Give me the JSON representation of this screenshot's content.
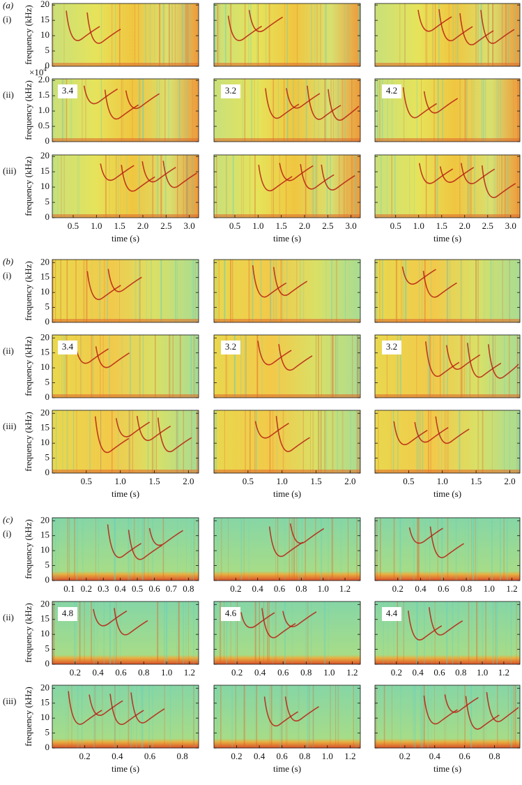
{
  "figure": {
    "sections": [
      {
        "label": "(a)",
        "rows": [
          {
            "label": "(i)",
            "ylabel": "frequency (kHz)",
            "ylim": [
              0,
              20.5
            ],
            "yticks": [
              0,
              5,
              10,
              15,
              20
            ]
          },
          {
            "label": "(ii)",
            "ylabel": "frequency (kHz)",
            "ylim": [
              0,
              2.05
            ],
            "y_multiplier": {
              "base": "×10",
              "exponent": "4"
            },
            "yticks": [
              0,
              0.5,
              {
                "value": 1.0,
                "label": "1.0"
              },
              1.5,
              {
                "value": 2.0,
                "label": "2.0"
              }
            ],
            "annotations": [
              "3.4",
              "3.2",
              "4.2"
            ]
          },
          {
            "label": "(iii)",
            "ylabel": "frequency (kHz)",
            "ylim": [
              0,
              20.5
            ],
            "yticks": [
              0,
              5,
              10,
              15,
              20
            ],
            "xlabel": "time (s)",
            "panels": [
              {
                "xlim": [
                  0.05,
                  3.2
                ],
                "xticks": [
                  0.5,
                  {
                    "value": 1.0,
                    "label": "1.0"
                  },
                  1.5,
                  {
                    "value": 2.0,
                    "label": "2.0"
                  },
                  2.5,
                  {
                    "value": 3.0,
                    "label": "3.0"
                  }
                ]
              },
              {
                "xlim": [
                  0.05,
                  3.2
                ],
                "xticks": [
                  0.5,
                  {
                    "value": 1.0,
                    "label": "1.0"
                  },
                  1.5,
                  {
                    "value": 2.0,
                    "label": "2.0"
                  },
                  2.5,
                  {
                    "value": 3.0,
                    "label": "3.0"
                  }
                ]
              },
              {
                "xlim": [
                  0.05,
                  3.2
                ],
                "xticks": [
                  0.5,
                  {
                    "value": 1.0,
                    "label": "1.0"
                  },
                  1.5,
                  {
                    "value": 2.0,
                    "label": "2.0"
                  },
                  2.5,
                  {
                    "value": 3.0,
                    "label": "3.0"
                  }
                ]
              }
            ]
          }
        ]
      },
      {
        "label": "(b)",
        "rows": [
          {
            "label": "(i)",
            "ylabel": "frequency (kHz)",
            "ylim": [
              0,
              21
            ],
            "yticks": [
              0,
              5,
              10,
              15,
              20
            ]
          },
          {
            "label": "(ii)",
            "ylabel": "frequency (kHz)",
            "ylim": [
              0,
              21
            ],
            "yticks": [
              0,
              5,
              10,
              15,
              20
            ],
            "annotations": [
              "3.4",
              "3.2",
              "3.2"
            ]
          },
          {
            "label": "(iii)",
            "ylabel": "frequency (kHz)",
            "ylim": [
              0,
              21
            ],
            "yticks": [
              0,
              5,
              10,
              15,
              20
            ],
            "xlabel": "time (s)",
            "panels": [
              {
                "xlim": [
                  0,
                  2.15
                ],
                "xticks": [
                  0.5,
                  {
                    "value": 1.0,
                    "label": "1.0"
                  },
                  1.5,
                  {
                    "value": 2.0,
                    "label": "2.0"
                  }
                ]
              },
              {
                "xlim": [
                  0,
                  2.15
                ],
                "xticks": [
                  0.5,
                  {
                    "value": 1.0,
                    "label": "1.0"
                  },
                  1.5,
                  {
                    "value": 2.0,
                    "label": "2.0"
                  }
                ]
              },
              {
                "xlim": [
                  0,
                  2.15
                ],
                "xticks": [
                  0.5,
                  {
                    "value": 1.0,
                    "label": "1.0"
                  },
                  1.5,
                  {
                    "value": 2.0,
                    "label": "2.0"
                  }
                ]
              }
            ]
          }
        ]
      },
      {
        "label": "(c)",
        "rows": [
          {
            "label": "(i)",
            "ylabel": "frequency (kHz)",
            "ylim": [
              0,
              21
            ],
            "yticks": [
              0,
              5,
              10,
              15,
              20
            ],
            "panels": [
              {
                "xlim": [
                  0,
                  0.86
                ],
                "xticks": [
                  0.1,
                  0.2,
                  0.3,
                  0.4,
                  0.5,
                  0.6,
                  0.7,
                  0.8
                ]
              },
              {
                "xlim": [
                  0,
                  1.34
                ],
                "xticks": [
                  0.2,
                  0.4,
                  0.6,
                  0.8,
                  {
                    "value": 1.0,
                    "label": "1.0"
                  },
                  1.2
                ]
              },
              {
                "xlim": [
                  0,
                  1.27
                ],
                "xticks": [
                  0.2,
                  0.4,
                  0.6,
                  0.8,
                  {
                    "value": 1.0,
                    "label": "1.0"
                  },
                  1.2
                ]
              }
            ]
          },
          {
            "label": "(ii)",
            "ylabel": "frequency (kHz)",
            "ylim": [
              0,
              21
            ],
            "yticks": [
              0,
              5,
              10,
              15,
              20
            ],
            "annotations": [
              "4.8",
              "4.6",
              "4.4"
            ],
            "panels": [
              {
                "xlim": [
                  0,
                  1.28
                ],
                "xticks": [
                  0.2,
                  0.4,
                  0.6,
                  0.8,
                  {
                    "value": 1.0,
                    "label": "1.0"
                  },
                  1.2
                ]
              },
              {
                "xlim": [
                  0,
                  1.27
                ],
                "xticks": [
                  0.2,
                  0.4,
                  0.6,
                  0.8,
                  {
                    "value": 1.0,
                    "label": "1.0"
                  },
                  1.2
                ]
              },
              {
                "xlim": [
                  0,
                  1.35
                ],
                "xticks": [
                  0.2,
                  0.4,
                  0.6,
                  0.8,
                  {
                    "value": 1.0,
                    "label": "1.0"
                  },
                  1.2
                ]
              }
            ]
          },
          {
            "label": "(iii)",
            "ylabel": "frequency (kHz)",
            "ylim": [
              0,
              21
            ],
            "yticks": [
              0,
              5,
              10,
              15,
              20
            ],
            "xlabel": "time (s)",
            "panels": [
              {
                "xlim": [
                  0,
                  0.9
                ],
                "xticks": [
                  0.2,
                  0.4,
                  0.6,
                  0.8
                ]
              },
              {
                "xlim": [
                  0,
                  1.29
                ],
                "xticks": [
                  0.2,
                  0.4,
                  0.6,
                  0.8,
                  {
                    "value": 1.0,
                    "label": "1.0"
                  },
                  1.2
                ]
              },
              {
                "xlim": [
                  0,
                  0.97
                ],
                "xticks": [
                  0.2,
                  0.4,
                  0.6,
                  0.8
                ]
              }
            ]
          }
        ]
      }
    ]
  }
}
